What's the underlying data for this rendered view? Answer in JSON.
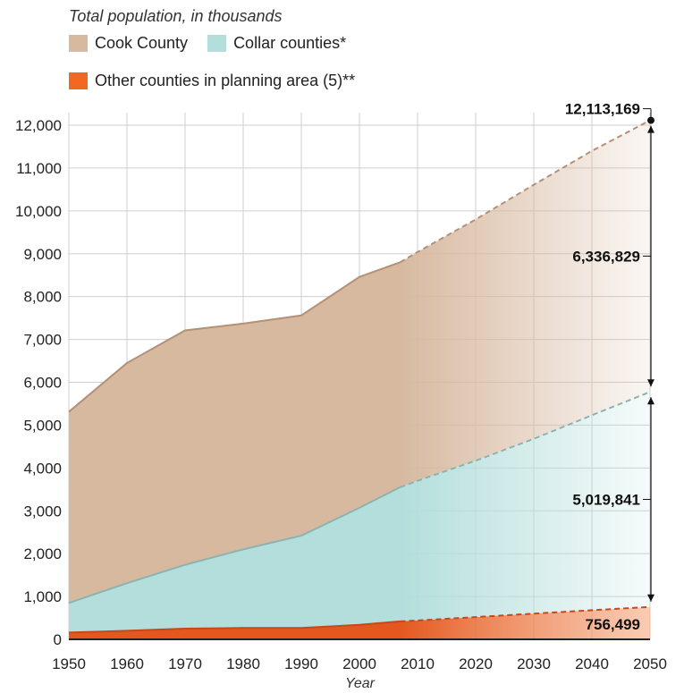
{
  "subtitle": "Total population, in thousands",
  "legend": {
    "cook": "Cook County",
    "collar": "Collar counties*",
    "other": "Other counties in planning area (5)**"
  },
  "colors": {
    "cook": "#d7b9a0",
    "collar": "#b3dedb",
    "other": "#e4581f",
    "cook_line": "#b49176",
    "collar_line": "#8ab4b2",
    "other_line": "#c8481a"
  },
  "chart_data": {
    "type": "area",
    "stacked": true,
    "x": [
      1950,
      1960,
      1970,
      1980,
      1990,
      2000,
      2007,
      2010,
      2020,
      2030,
      2040,
      2050
    ],
    "projection_start": 2007,
    "series": [
      {
        "name": "Other counties in planning area (5)**",
        "values": [
          160,
          200,
          250,
          265,
          265,
          340,
          420,
          440,
          520,
          600,
          680,
          756.499
        ]
      },
      {
        "name": "Collar counties*",
        "values": [
          850,
          1310,
          1740,
          2100,
          2420,
          3070,
          3550,
          3700,
          4170,
          4680,
          5230,
          5776.34
        ]
      },
      {
        "name": "Cook County",
        "values": [
          5310,
          6450,
          7210,
          7370,
          7560,
          8460,
          8800,
          9040,
          9800,
          10610,
          11400,
          12113.169
        ]
      }
    ],
    "y_ticks": [
      0,
      1000,
      2000,
      3000,
      4000,
      5000,
      6000,
      7000,
      8000,
      9000,
      10000,
      11000,
      12000
    ],
    "y_tick_labels": [
      "0",
      "1,000",
      "2,000",
      "3,000",
      "4,000",
      "5,000",
      "6,000",
      "7,000",
      "8,000",
      "9,000",
      "10,000",
      "11,000",
      "12,000"
    ],
    "x_tick_labels": [
      "1950",
      "1960",
      "1970",
      "1980",
      "1990",
      "2000",
      "2010",
      "2020",
      "2030",
      "2040",
      "2050"
    ],
    "ylim": [
      0,
      12500
    ],
    "xlim": [
      1950,
      2050
    ],
    "xlabel": "Year",
    "annotations": {
      "total": "12,113,169",
      "cook_2050": "6,336,829",
      "collar_2050": "5,019,841",
      "other_2050": "756,499"
    },
    "grid": true
  }
}
